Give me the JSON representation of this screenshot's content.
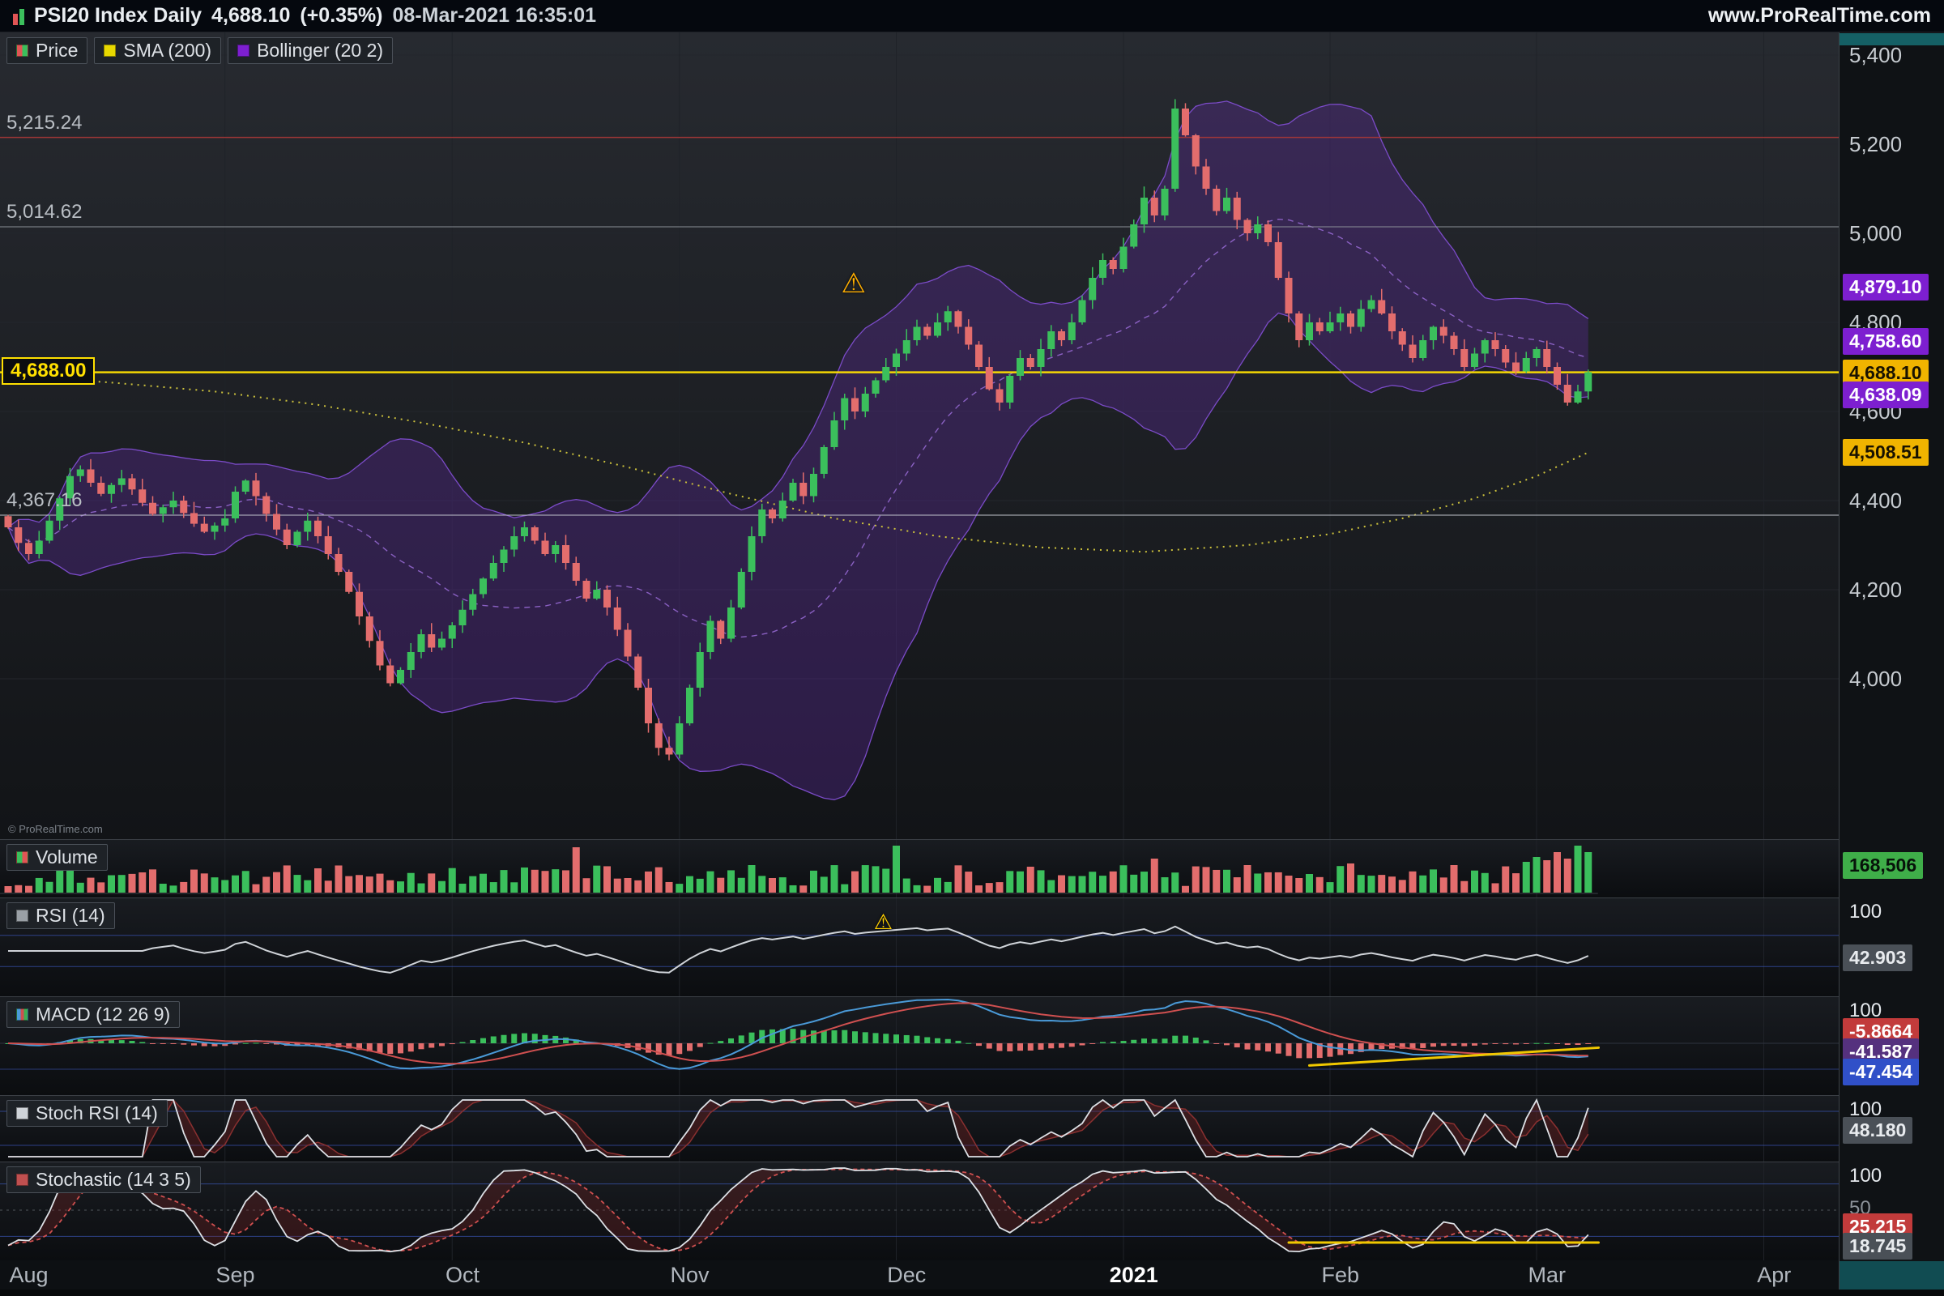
{
  "titlebar": {
    "symbol": "PSI20 Index Daily",
    "price": "4,688.10",
    "change": "(+0.35%)",
    "datetime": "08-Mar-2021 16:35:01",
    "site": "www.ProRealTime.com"
  },
  "legends": {
    "price": "Price",
    "sma": "SMA (200)",
    "bollinger": "Bollinger (20 2)",
    "volume": "Volume",
    "rsi": "RSI (14)",
    "macd": "MACD (12 26 9)",
    "stoch_rsi": "Stoch RSI (14)",
    "stochastic": "Stochastic (14 3 5)"
  },
  "price_panel": {
    "levels": [
      {
        "label": "5,215.24",
        "value": 5215.24,
        "color": "#a83838",
        "width": 1.5,
        "boxed": false
      },
      {
        "label": "5,014.62",
        "value": 5014.62,
        "color": "#8f959c",
        "width": 1,
        "boxed": false
      },
      {
        "label": "4,688.00",
        "value": 4688.0,
        "color": "#ffe000",
        "width": 2.5,
        "boxed": true
      },
      {
        "label": "4,367.16",
        "value": 4367.16,
        "color": "#c9ced4",
        "width": 1,
        "boxed": false
      }
    ],
    "axis_ticks": [
      {
        "label": "5,400",
        "value": 5400
      },
      {
        "label": "5,200",
        "value": 5200
      },
      {
        "label": "5,000",
        "value": 5000
      },
      {
        "label": "4,800",
        "value": 4800
      },
      {
        "label": "4,600",
        "value": 4600
      },
      {
        "label": "4,400",
        "value": 4400
      },
      {
        "label": "4,200",
        "value": 4200
      },
      {
        "label": "4,000",
        "value": 4000
      }
    ],
    "tags": [
      {
        "label": "4,879.10",
        "value": 4879.1,
        "style": "tag-violet",
        "name": "bollinger-upper-tag"
      },
      {
        "label": "4,758.60",
        "value": 4758.6,
        "style": "tag-violet",
        "name": "bollinger-mid-tag"
      },
      {
        "label": "4,688.10",
        "value": 4688.1,
        "style": "tag-yellow",
        "name": "last-price-tag"
      },
      {
        "label": "4,638.09",
        "value": 4638.09,
        "style": "tag-violet",
        "name": "bollinger-lower-tag"
      },
      {
        "label": "4,508.51",
        "value": 4508.51,
        "style": "tag-yellow",
        "name": "sma200-tag"
      }
    ],
    "copyright": "© ProRealTime.com"
  },
  "side_labels": {
    "volume": {
      "value": "168,506"
    },
    "rsi": {
      "scale_top": "100",
      "value": "42.903"
    },
    "macd": {
      "scale_top": "100",
      "hist_value": "-5.8664",
      "signal_value": "-41.587",
      "macd_value": "-47.454"
    },
    "stoch_rsi": {
      "scale_top": "100",
      "value": "48.180"
    },
    "stochastic": {
      "scale_top": "100",
      "mid": "50",
      "d_value": "25.215",
      "k_value": "18.745"
    }
  },
  "months": [
    {
      "label": "Aug",
      "index": 2,
      "bold": false
    },
    {
      "label": "Sep",
      "index": 22,
      "bold": false
    },
    {
      "label": "Oct",
      "index": 44,
      "bold": false
    },
    {
      "label": "Nov",
      "index": 66,
      "bold": false
    },
    {
      "label": "Dec",
      "index": 87,
      "bold": false
    },
    {
      "label": "2021",
      "index": 109,
      "bold": true
    },
    {
      "label": "Feb",
      "index": 129,
      "bold": false
    },
    {
      "label": "Mar",
      "index": 149,
      "bold": false
    },
    {
      "label": "Apr",
      "index": 171,
      "bold": false
    }
  ],
  "warnings": {
    "price": {
      "glyph": "⚠"
    },
    "rsi": {
      "glyph": "⚠"
    }
  },
  "colors": {
    "candle_up": "#3bbf5c",
    "candle_down": "#e36d6d",
    "bollinger_fill": "rgba(98,44,168,0.32)",
    "bollinger_edge": "#7b4bc8",
    "bollinger_mid": "#9a6cd8",
    "sma200": "#cdc23c",
    "rsi_line": "#cfd3d8",
    "macd_line": "#4a9ad8",
    "signal_line": "#d05050",
    "guide_blue": "#3a55b8",
    "trendline_yellow": "#f0c800"
  },
  "chart_data": {
    "type": "candlestick",
    "symbol": "PSI20 Index",
    "timeframe": "Daily",
    "title": "PSI20 Index Daily 4,688.10 (+0.35%) 08-Mar-2021 16:35:01",
    "last_close": 4688.1,
    "change_pct": "+0.35%",
    "last_update": "08-Mar-2021 16:35:01",
    "y_range": [
      3700,
      5450
    ],
    "open_rule": "previous_close",
    "first_open": 4365,
    "closes": [
      4340,
      4305,
      4280,
      4310,
      4355,
      4405,
      4455,
      4470,
      4440,
      4415,
      4435,
      4450,
      4425,
      4395,
      4370,
      4385,
      4400,
      4372,
      4348,
      4330,
      4344,
      4360,
      4420,
      4445,
      4410,
      4370,
      4335,
      4300,
      4330,
      4355,
      4320,
      4280,
      4240,
      4195,
      4140,
      4085,
      4030,
      3990,
      4020,
      4060,
      4100,
      4070,
      4090,
      4120,
      4155,
      4190,
      4225,
      4260,
      4290,
      4320,
      4340,
      4310,
      4280,
      4300,
      4260,
      4220,
      4180,
      4200,
      4160,
      4110,
      4050,
      3980,
      3900,
      3845,
      3830,
      3900,
      3980,
      4060,
      4130,
      4090,
      4160,
      4240,
      4320,
      4380,
      4360,
      4400,
      4440,
      4410,
      4460,
      4520,
      4580,
      4630,
      4600,
      4640,
      4670,
      4700,
      4730,
      4760,
      4790,
      4770,
      4800,
      4825,
      4790,
      4750,
      4700,
      4650,
      4620,
      4680,
      4720,
      4700,
      4740,
      4780,
      4760,
      4800,
      4850,
      4900,
      4940,
      4920,
      4970,
      5020,
      5080,
      5040,
      5100,
      5280,
      5220,
      5150,
      5100,
      5050,
      5080,
      5030,
      5000,
      5020,
      4980,
      4900,
      4820,
      4760,
      4800,
      4780,
      4800,
      4820,
      4790,
      4830,
      4850,
      4820,
      4780,
      4750,
      4720,
      4760,
      4790,
      4770,
      4740,
      4700,
      4730,
      4760,
      4740,
      4710,
      4690,
      4720,
      4740,
      4700,
      4660,
      4620,
      4645,
      4688.1
    ],
    "x_axis_months": [
      "Aug",
      "Sep",
      "Oct",
      "Nov",
      "Dec",
      "2021",
      "Feb",
      "Mar",
      "Apr"
    ],
    "month_boundaries": [
      21,
      43,
      65,
      86,
      108,
      128,
      148,
      170
    ],
    "indicators": {
      "sma": {
        "period": 200,
        "last": 4508.51
      },
      "bollinger": {
        "period": 20,
        "dev": 2,
        "upper": 4879.1,
        "middle": 4758.6,
        "lower": 4638.09
      },
      "rsi": {
        "period": 14,
        "last": 42.903
      },
      "macd": {
        "fast": 12,
        "slow": 26,
        "signal": 9,
        "macd_last": -47.454,
        "signal_last": -41.587,
        "hist_last": -5.8664
      },
      "stoch_rsi": {
        "period": 14,
        "last": 48.18
      },
      "stochastic": {
        "k": 14,
        "slowing": 3,
        "d": 5,
        "k_last": 18.745,
        "d_last": 25.215
      },
      "volume_last": 168506
    },
    "levels": [
      5215.24,
      5014.62,
      4688.0,
      4367.16
    ],
    "sma200_points": [
      [
        0,
        4680
      ],
      [
        10,
        4665
      ],
      [
        20,
        4645
      ],
      [
        30,
        4615
      ],
      [
        40,
        4575
      ],
      [
        50,
        4530
      ],
      [
        60,
        4475
      ],
      [
        70,
        4415
      ],
      [
        80,
        4360
      ],
      [
        90,
        4320
      ],
      [
        100,
        4295
      ],
      [
        110,
        4285
      ],
      [
        120,
        4300
      ],
      [
        128,
        4325
      ],
      [
        135,
        4360
      ],
      [
        142,
        4405
      ],
      [
        148,
        4455
      ],
      [
        153,
        4508
      ]
    ],
    "volume_spikes": {
      "5": 34,
      "30": 30,
      "55": 56,
      "72": 34,
      "86": 58,
      "99": 32,
      "111": 42,
      "120": 34,
      "130": 36,
      "140": 34,
      "147": 38,
      "148": 44,
      "149": 40,
      "150": 50,
      "151": 42,
      "152": 58,
      "153": 50
    },
    "trendlines": [
      {
        "panel": "macd",
        "from_index": 126,
        "from_frac": 0.7,
        "to_index": 154,
        "to_frac": 0.52
      },
      {
        "panel": "stoch",
        "from_index": 124,
        "from_frac": 0.82,
        "to_index": 154,
        "to_frac": 0.82
      }
    ]
  }
}
